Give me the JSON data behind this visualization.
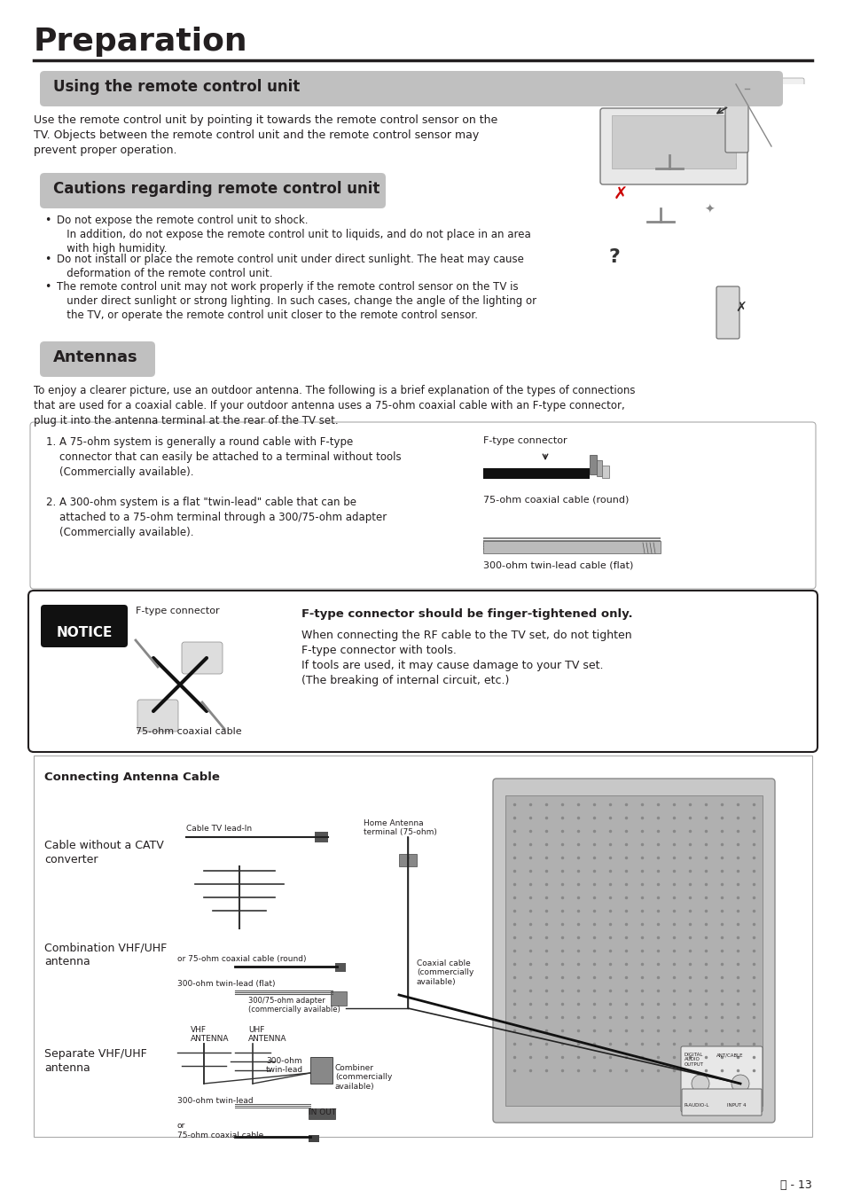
{
  "bg_color": "#ffffff",
  "text_color": "#231f20",
  "title": "Preparation",
  "title_fontsize": 26,
  "section1_title": "Using the remote control unit",
  "section1_sub_title": "Cautions regarding remote control unit",
  "section1_text": "Use the remote control unit by pointing it towards the remote control sensor on the\nTV. Objects between the remote control unit and the remote control sensor may\nprevent proper operation.",
  "section1_bullets": [
    "Do not expose the remote control unit to shock.\n   In addition, do not expose the remote control unit to liquids, and do not place in an area\n   with high humidity.",
    "Do not install or place the remote control unit under direct sunlight. The heat may cause\n   deformation of the remote control unit.",
    "The remote control unit may not work properly if the remote control sensor on the TV is\n   under direct sunlight or strong lighting. In such cases, change the angle of the lighting or\n   the TV, or operate the remote control unit closer to the remote control sensor."
  ],
  "section2_title": "Antennas",
  "section2_text": "To enjoy a clearer picture, use an outdoor antenna. The following is a brief explanation of the types of connections\nthat are used for a coaxial cable. If your outdoor antenna uses a 75-ohm coaxial cable with an F-type connector,\nplug it into the antenna terminal at the rear of the TV set.",
  "antenna_text_left": "1. A 75-ohm system is generally a round cable with F-type\n    connector that can easily be attached to a terminal without tools\n    (Commercially available).\n\n2. A 300-ohm system is a flat \"twin-lead\" cable that can be\n    attached to a 75-ohm terminal through a 300/75-ohm adapter\n    (Commercially available).",
  "antenna_label1": "F-type connector",
  "antenna_label2": "75-ohm coaxial cable (round)",
  "antenna_label3": "300-ohm twin-lead cable (flat)",
  "notice_title": "NOTICE",
  "notice_label1": "F-type connector",
  "notice_label2": "75-ohm coaxial cable",
  "notice_bold": "F-type connector should be finger-tightened only.",
  "notice_text": "When connecting the RF cable to the TV set, do not tighten\nF-type connector with tools.\nIf tools are used, it may cause damage to your TV set.\n(The breaking of internal circuit, etc.)",
  "connecting_title": "Connecting Antenna Cable",
  "label_catv": "Cable without a CATV\nconverter",
  "label_combo": "Combination VHF/UHF\nantenna",
  "label_sep": "Separate VHF/UHF\nantenna",
  "small_cable_tv": "Cable TV lead-In",
  "small_home_ant": "Home Antenna\nterminal (75-ohm)",
  "small_coax_round": "or 75-ohm coaxial cable (round)",
  "small_300_flat": "300-ohm twin-lead (flat)",
  "small_300_adapter": "300/75-ohm adapter\n(commercially available)",
  "small_vhf": "VHF\nANTENNA",
  "small_uhf": "UHF\nANTENNA",
  "small_300_tw": "300-ohm\ntwin-lead",
  "small_combiner": "Combiner\n(commercially\navailable)",
  "small_300_tl": "300-ohm twin-lead",
  "small_in_out": "IN OUT",
  "small_coax_75": "75-ohm coaxial cable",
  "small_coax_cable": "Coaxial cable\n(commercially\navailable)",
  "page_num": "- 13",
  "gray_section": "#b0b0b0",
  "gray_box": "#e8e8e8",
  "border_color": "#888888",
  "dark_color": "#231f20"
}
